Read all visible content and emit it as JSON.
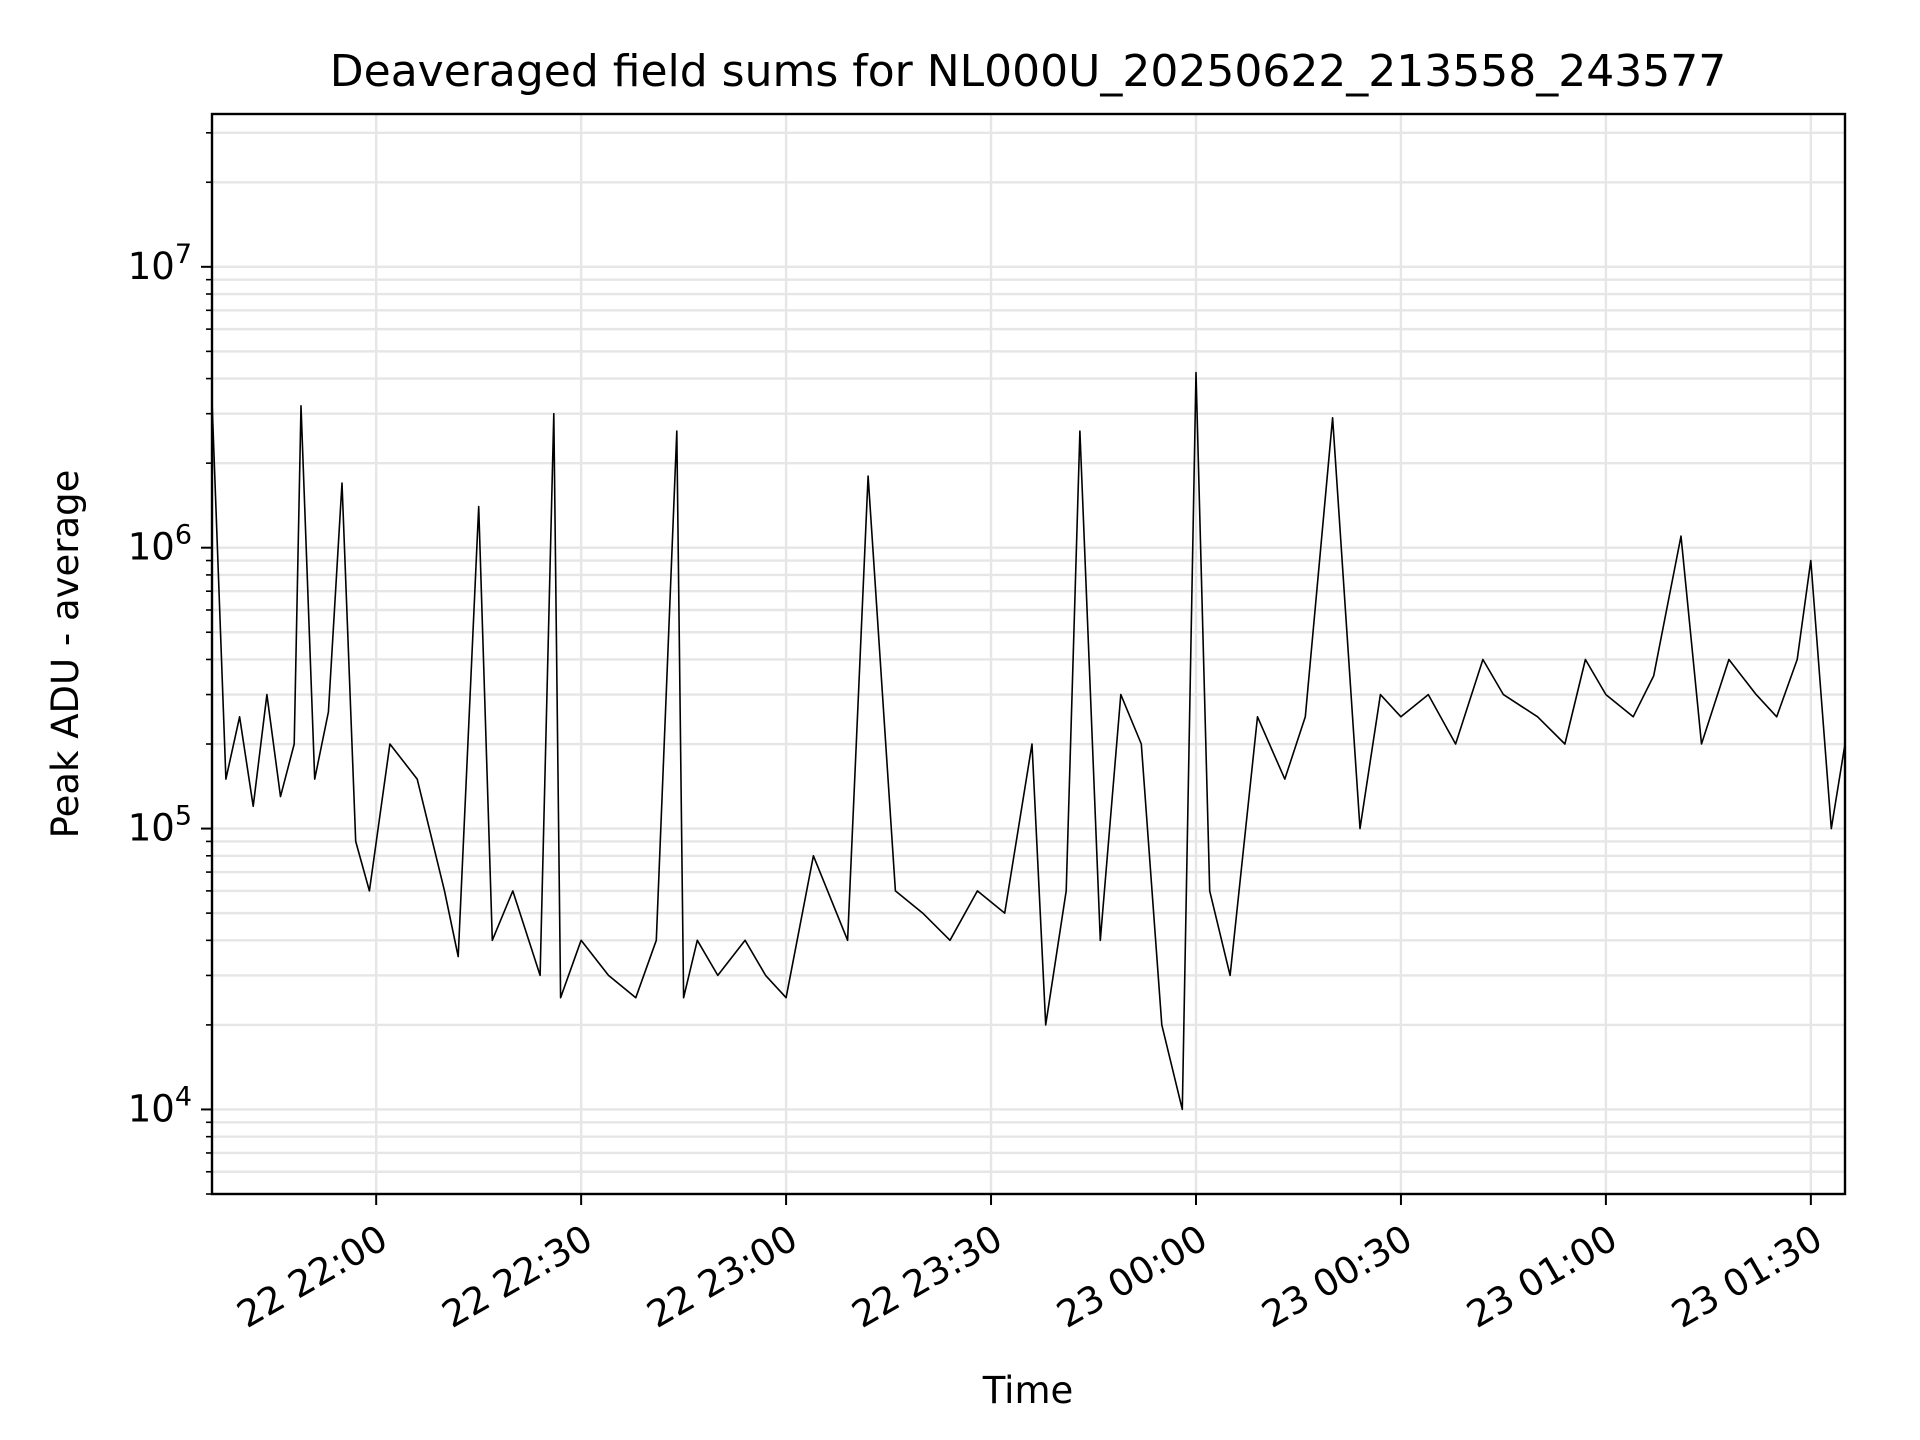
{
  "chart_data": {
    "type": "line",
    "title": "Deaveraged field sums for NL000U_20250622_213558_243577",
    "xlabel": "Time",
    "ylabel": "Peak ADU - average",
    "yscale": "log",
    "ylim": [
      5000,
      35000000
    ],
    "xlim": [
      "2025-06-22 21:35:58",
      "2025-06-23 01:35:00"
    ],
    "x_tick_labels": [
      "22 22:00",
      "22 22:30",
      "22 23:00",
      "22 23:30",
      "23 00:00",
      "23 00:30",
      "23 01:00",
      "23 01:30"
    ],
    "x_ticks": [
      "2025-06-22 22:00",
      "2025-06-22 22:30",
      "2025-06-22 23:00",
      "2025-06-22 23:30",
      "2025-06-23 00:00",
      "2025-06-23 00:30",
      "2025-06-23 01:00",
      "2025-06-23 01:30"
    ],
    "y_ticks": [
      10000,
      100000,
      1000000,
      10000000
    ],
    "y_tick_labels": [
      {
        "base": "10",
        "exp": "4"
      },
      {
        "base": "10",
        "exp": "5"
      },
      {
        "base": "10",
        "exp": "6"
      },
      {
        "base": "10",
        "exp": "7"
      }
    ],
    "grid": true,
    "line_color": "#000000",
    "grid_color": "#e6e6e6",
    "series": [
      {
        "x": [
          "2025-06-22 21:36",
          "2025-06-22 21:38",
          "2025-06-22 21:40",
          "2025-06-22 21:42",
          "2025-06-22 21:44",
          "2025-06-22 21:46",
          "2025-06-22 21:48",
          "2025-06-22 21:49",
          "2025-06-22 21:51",
          "2025-06-22 21:53",
          "2025-06-22 21:55",
          "2025-06-22 21:57",
          "2025-06-22 21:59",
          "2025-06-22 22:02",
          "2025-06-22 22:06",
          "2025-06-22 22:10",
          "2025-06-22 22:12",
          "2025-06-22 22:15",
          "2025-06-22 22:17",
          "2025-06-22 22:20",
          "2025-06-22 22:24",
          "2025-06-22 22:26",
          "2025-06-22 22:27",
          "2025-06-22 22:30",
          "2025-06-22 22:34",
          "2025-06-22 22:38",
          "2025-06-22 22:41",
          "2025-06-22 22:44",
          "2025-06-22 22:45",
          "2025-06-22 22:47",
          "2025-06-22 22:50",
          "2025-06-22 22:54",
          "2025-06-22 22:57",
          "2025-06-22 23:00",
          "2025-06-22 23:04",
          "2025-06-22 23:09",
          "2025-06-22 23:12",
          "2025-06-22 23:16",
          "2025-06-22 23:20",
          "2025-06-22 23:24",
          "2025-06-22 23:28",
          "2025-06-22 23:32",
          "2025-06-22 23:36",
          "2025-06-22 23:38",
          "2025-06-22 23:41",
          "2025-06-22 23:43",
          "2025-06-22 23:46",
          "2025-06-22 23:49",
          "2025-06-22 23:52",
          "2025-06-22 23:55",
          "2025-06-22 23:58",
          "2025-06-23 00:00",
          "2025-06-23 00:02",
          "2025-06-23 00:05",
          "2025-06-23 00:09",
          "2025-06-23 00:13",
          "2025-06-23 00:16",
          "2025-06-23 00:20",
          "2025-06-23 00:24",
          "2025-06-23 00:27",
          "2025-06-23 00:30",
          "2025-06-23 00:34",
          "2025-06-23 00:38",
          "2025-06-23 00:42",
          "2025-06-23 00:45",
          "2025-06-23 00:50",
          "2025-06-23 00:54",
          "2025-06-23 00:57",
          "2025-06-23 01:00",
          "2025-06-23 01:04",
          "2025-06-23 01:07",
          "2025-06-23 01:11",
          "2025-06-23 01:14",
          "2025-06-23 01:18",
          "2025-06-23 01:22",
          "2025-06-23 01:25",
          "2025-06-23 01:28",
          "2025-06-23 01:30",
          "2025-06-23 01:33",
          "2025-06-23 01:35"
        ],
        "y": [
          3200000,
          150000,
          250000,
          120000,
          300000,
          130000,
          200000,
          3200000,
          150000,
          260000,
          1700000,
          90000,
          60000,
          200000,
          150000,
          60000,
          35000,
          1400000,
          40000,
          60000,
          30000,
          3000000,
          25000,
          40000,
          30000,
          25000,
          40000,
          2600000,
          25000,
          40000,
          30000,
          40000,
          30000,
          25000,
          80000,
          40000,
          1800000,
          60000,
          50000,
          40000,
          60000,
          50000,
          200000,
          20000,
          60000,
          2600000,
          40000,
          300000,
          200000,
          20000,
          10000,
          4200000,
          60000,
          30000,
          250000,
          150000,
          250000,
          2900000,
          100000,
          300000,
          250000,
          300000,
          200000,
          400000,
          300000,
          250000,
          200000,
          400000,
          300000,
          250000,
          350000,
          1100000,
          200000,
          400000,
          300000,
          250000,
          400000,
          900000,
          100000,
          200000
        ]
      }
    ]
  }
}
